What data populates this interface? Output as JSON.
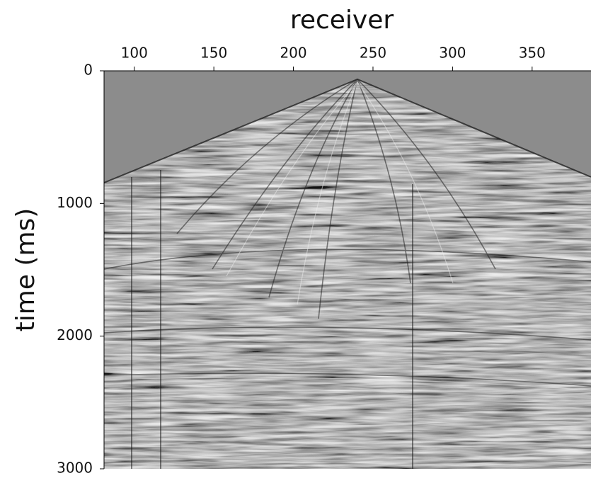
{
  "chart_data": {
    "type": "image",
    "xlabel": "receiver",
    "ylabel": "time (ms)",
    "xlim": [
      81,
      387
    ],
    "xticks": [
      100,
      150,
      200,
      250,
      300,
      350
    ],
    "ylim": [
      0,
      3000
    ],
    "yticks": [
      0,
      1000,
      2000,
      3000
    ],
    "y_inverted": true,
    "colormap": "gray"
  }
}
